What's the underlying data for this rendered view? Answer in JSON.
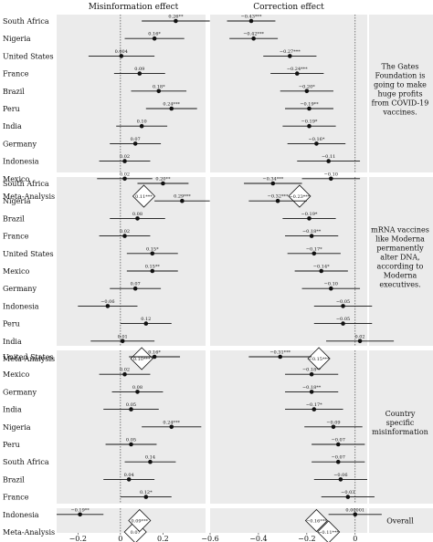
{
  "chart_data": {
    "type": "forest",
    "columns": [
      "Misinformation effect",
      "Correction effect"
    ],
    "x_axes": {
      "misinformation": {
        "range": [
          -0.3,
          0.4
        ],
        "ticks": [
          -0.2,
          0,
          0.2
        ],
        "tick_labels": [
          "−0.2",
          "0",
          "0.2"
        ]
      },
      "correction": {
        "range": [
          -0.6,
          0.05
        ],
        "ticks": [
          -0.6,
          -0.4,
          -0.2,
          0
        ],
        "tick_labels": [
          "−0.6",
          "−0.4",
          "−0.2",
          "0"
        ]
      }
    },
    "panels": [
      {
        "side_label": "The Gates Foundation is going to make huge profits from COVID-19 vaccines.",
        "rows": [
          {
            "country": "South Africa",
            "mis": {
              "est": 0.26,
              "lo": 0.1,
              "hi": 0.42,
              "label": "0.26**"
            },
            "cor": {
              "est": -0.43,
              "lo": -0.53,
              "hi": -0.33,
              "label": "−0.43***"
            }
          },
          {
            "country": "Nigeria",
            "mis": {
              "est": 0.16,
              "lo": 0.02,
              "hi": 0.3,
              "label": "0.16*"
            },
            "cor": {
              "est": -0.42,
              "lo": -0.52,
              "hi": -0.32,
              "label": "−0.42***"
            }
          },
          {
            "country": "United States",
            "mis": {
              "est": 0.004,
              "lo": -0.15,
              "hi": 0.16,
              "label": "0.004"
            },
            "cor": {
              "est": -0.27,
              "lo": -0.38,
              "hi": -0.16,
              "label": "−0.27***"
            }
          },
          {
            "country": "France",
            "mis": {
              "est": 0.09,
              "lo": -0.03,
              "hi": 0.21,
              "label": "0.09"
            },
            "cor": {
              "est": -0.24,
              "lo": -0.35,
              "hi": -0.13,
              "label": "−0.24***"
            }
          },
          {
            "country": "Brazil",
            "mis": {
              "est": 0.18,
              "lo": 0.05,
              "hi": 0.31,
              "label": "0.18*"
            },
            "cor": {
              "est": -0.2,
              "lo": -0.31,
              "hi": -0.09,
              "label": "−0.20*"
            }
          },
          {
            "country": "Peru",
            "mis": {
              "est": 0.24,
              "lo": 0.12,
              "hi": 0.36,
              "label": "0.24***"
            },
            "cor": {
              "est": -0.19,
              "lo": -0.29,
              "hi": -0.09,
              "label": "−0.19**"
            }
          },
          {
            "country": "India",
            "mis": {
              "est": 0.1,
              "lo": -0.02,
              "hi": 0.22,
              "label": "0.10"
            },
            "cor": {
              "est": -0.19,
              "lo": -0.3,
              "hi": -0.08,
              "label": "−0.19*"
            }
          },
          {
            "country": "Germany",
            "mis": {
              "est": 0.07,
              "lo": -0.05,
              "hi": 0.19,
              "label": "0.07"
            },
            "cor": {
              "est": -0.16,
              "lo": -0.28,
              "hi": -0.04,
              "label": "−0.16*"
            }
          },
          {
            "country": "Indonesia",
            "mis": {
              "est": 0.02,
              "lo": -0.1,
              "hi": 0.14,
              "label": "0.02"
            },
            "cor": {
              "est": -0.11,
              "lo": -0.24,
              "hi": 0.02,
              "label": "−0.11"
            }
          },
          {
            "country": "Mexico",
            "mis": {
              "est": 0.02,
              "lo": -0.11,
              "hi": 0.15,
              "label": "0.02"
            },
            "cor": {
              "est": -0.1,
              "lo": -0.22,
              "hi": 0.02,
              "label": "−0.10"
            }
          }
        ],
        "meta": {
          "label": "Meta-Analysis",
          "mis": {
            "est": 0.11,
            "label": "0.11***"
          },
          "cor": {
            "est": -0.23,
            "label": "−0.23***"
          }
        }
      },
      {
        "side_label": "mRNA vaccines like Moderna permanently alter DNA, according to Moderna executives.",
        "rows": [
          {
            "country": "South Africa",
            "mis": {
              "est": 0.2,
              "lo": 0.08,
              "hi": 0.32,
              "label": "0.20**"
            },
            "cor": {
              "est": -0.34,
              "lo": -0.46,
              "hi": -0.22,
              "label": "−0.34***"
            }
          },
          {
            "country": "Nigeria",
            "mis": {
              "est": 0.29,
              "lo": 0.16,
              "hi": 0.42,
              "label": "0.29***"
            },
            "cor": {
              "est": -0.32,
              "lo": -0.44,
              "hi": -0.2,
              "label": "−0.32***"
            }
          },
          {
            "country": "Brazil",
            "mis": {
              "est": 0.08,
              "lo": -0.05,
              "hi": 0.21,
              "label": "0.08"
            },
            "cor": {
              "est": -0.19,
              "lo": -0.3,
              "hi": -0.08,
              "label": "−0.19*"
            }
          },
          {
            "country": "France",
            "mis": {
              "est": 0.02,
              "lo": -0.1,
              "hi": 0.14,
              "label": "0.02"
            },
            "cor": {
              "est": -0.18,
              "lo": -0.29,
              "hi": -0.07,
              "label": "−0.18**"
            }
          },
          {
            "country": "United States",
            "mis": {
              "est": 0.15,
              "lo": 0.03,
              "hi": 0.27,
              "label": "0.15*"
            },
            "cor": {
              "est": -0.17,
              "lo": -0.28,
              "hi": -0.06,
              "label": "−0.17*"
            }
          },
          {
            "country": "Mexico",
            "mis": {
              "est": 0.15,
              "lo": 0.03,
              "hi": 0.27,
              "label": "0.15**"
            },
            "cor": {
              "est": -0.14,
              "lo": -0.25,
              "hi": -0.03,
              "label": "−0.14*"
            }
          },
          {
            "country": "Germany",
            "mis": {
              "est": 0.07,
              "lo": -0.05,
              "hi": 0.19,
              "label": "0.07"
            },
            "cor": {
              "est": -0.1,
              "lo": -0.22,
              "hi": 0.02,
              "label": "−0.10"
            }
          },
          {
            "country": "Indonesia",
            "mis": {
              "est": -0.06,
              "lo": -0.2,
              "hi": 0.08,
              "label": "−0.06"
            },
            "cor": {
              "est": -0.05,
              "lo": -0.17,
              "hi": 0.07,
              "label": "−0.05"
            }
          },
          {
            "country": "Peru",
            "mis": {
              "est": 0.12,
              "lo": 0,
              "hi": 0.24,
              "label": "0.12"
            },
            "cor": {
              "est": -0.05,
              "lo": -0.17,
              "hi": 0.07,
              "label": "−0.05"
            }
          },
          {
            "country": "India",
            "mis": {
              "est": 0.01,
              "lo": -0.14,
              "hi": 0.16,
              "label": "0.01"
            },
            "cor": {
              "est": 0.02,
              "lo": -0.12,
              "hi": 0.16,
              "label": "0.02"
            }
          }
        ],
        "meta": {
          "label": "Meta-Analysis",
          "mis": {
            "est": 0.1,
            "label": "0.10***"
          },
          "cor": {
            "est": -0.15,
            "label": "−0.15***"
          }
        }
      },
      {
        "side_label": "Country specific misinformation",
        "rows": [
          {
            "country": "United States",
            "mis": {
              "est": 0.16,
              "lo": 0.04,
              "hi": 0.28,
              "label": "0.16*"
            },
            "cor": {
              "est": -0.31,
              "lo": -0.44,
              "hi": -0.18,
              "label": "−0.31***"
            }
          },
          {
            "country": "Mexico",
            "mis": {
              "est": 0.02,
              "lo": -0.1,
              "hi": 0.14,
              "label": "0.02"
            },
            "cor": {
              "est": -0.18,
              "lo": -0.29,
              "hi": -0.07,
              "label": "−0.18**"
            }
          },
          {
            "country": "Germany",
            "mis": {
              "est": 0.08,
              "lo": -0.04,
              "hi": 0.2,
              "label": "0.08"
            },
            "cor": {
              "est": -0.18,
              "lo": -0.29,
              "hi": -0.07,
              "label": "−0.18**"
            }
          },
          {
            "country": "India",
            "mis": {
              "est": 0.05,
              "lo": -0.08,
              "hi": 0.18,
              "label": "0.05"
            },
            "cor": {
              "est": -0.17,
              "lo": -0.29,
              "hi": -0.05,
              "label": "−0.17*"
            }
          },
          {
            "country": "Nigeria",
            "mis": {
              "est": 0.24,
              "lo": 0.1,
              "hi": 0.38,
              "label": "0.24***"
            },
            "cor": {
              "est": -0.09,
              "lo": -0.21,
              "hi": 0.03,
              "label": "−0.09"
            }
          },
          {
            "country": "Peru",
            "mis": {
              "est": 0.05,
              "lo": -0.07,
              "hi": 0.17,
              "label": "0.05"
            },
            "cor": {
              "est": -0.07,
              "lo": -0.18,
              "hi": 0.04,
              "label": "−0.07"
            }
          },
          {
            "country": "South Africa",
            "mis": {
              "est": 0.14,
              "lo": 0.02,
              "hi": 0.26,
              "label": "0.14"
            },
            "cor": {
              "est": -0.07,
              "lo": -0.18,
              "hi": 0.04,
              "label": "−0.07"
            }
          },
          {
            "country": "Brazil",
            "mis": {
              "est": 0.04,
              "lo": -0.08,
              "hi": 0.16,
              "label": "0.04"
            },
            "cor": {
              "est": -0.06,
              "lo": -0.17,
              "hi": 0.05,
              "label": "−0.06"
            }
          },
          {
            "country": "France",
            "mis": {
              "est": 0.12,
              "lo": 0,
              "hi": 0.24,
              "label": "0.12*"
            },
            "cor": {
              "est": -0.03,
              "lo": -0.14,
              "hi": 0.08,
              "label": "−0.03"
            }
          },
          {
            "country": "Indonesia",
            "mis": {
              "est": -0.19,
              "lo": -0.3,
              "hi": -0.08,
              "label": "−0.19**"
            },
            "cor": {
              "est": 1e-05,
              "lo": -0.11,
              "hi": 0.11,
              "label": "0.00001"
            }
          }
        ],
        "meta": {
          "label": "Meta-Analysis",
          "mis": {
            "est": 0.07,
            "label": "0.07"
          },
          "cor": {
            "est": -0.11,
            "label": "−0.11***"
          }
        }
      }
    ],
    "overall": {
      "side_label": "Overall",
      "mis": {
        "est": 0.09,
        "label": "0.09***"
      },
      "cor": {
        "est": -0.16,
        "label": "−0.16***"
      }
    }
  }
}
